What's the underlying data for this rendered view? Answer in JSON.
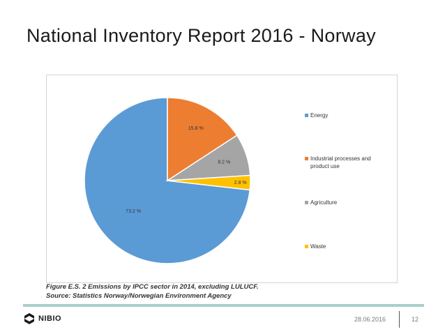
{
  "slide": {
    "title": "National Inventory Report 2016 - Norway",
    "date": "28.06.2016",
    "page_number": "12",
    "logo_text": "NIBIO"
  },
  "caption": {
    "line1": "Figure E.S. 2 Emissions by IPCC sector in 2014, excluding LULUCF.",
    "line2": "Source: Statistics Norway/Norwegian Environment Agency"
  },
  "chart_data": {
    "type": "pie",
    "categories": [
      "Energy",
      "Industrial processes and product use",
      "Agriculture",
      "Waste"
    ],
    "values": [
      73.2,
      15.8,
      8.2,
      2.8
    ],
    "data_labels": [
      "73.2 %",
      "15.8 %",
      "8.2 %",
      "2.8 %"
    ],
    "colors": [
      "#5b9bd5",
      "#ed7d31",
      "#a5a5a5",
      "#ffc000"
    ],
    "legend": "right"
  },
  "colors": {
    "footer_rule": "#a8cfcb"
  }
}
